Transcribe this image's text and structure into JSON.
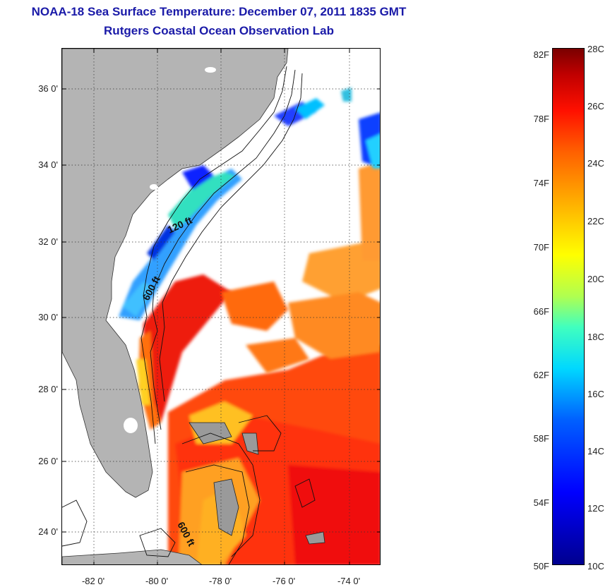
{
  "title": {
    "line1": "NOAA-18 Sea Surface Temperature:  December 07, 2011 1835 GMT",
    "line2": "Rutgers Coastal Ocean Observation Lab"
  },
  "map": {
    "lat_ticks": [
      "36 0'",
      "34 0'",
      "32 0'",
      "30 0'",
      "28 0'",
      "26 0'",
      "24 0'"
    ],
    "lon_ticks": [
      "-82 0'",
      "-80 0'",
      "-78 0'",
      "-76 0'",
      "-74 0'"
    ],
    "contour_labels": [
      "120 ft",
      "600 ft",
      "600 ft"
    ],
    "land_color": "#b4b4b4",
    "cloud_color": "#ffffff"
  },
  "colorbar": {
    "fahrenheit_labels": [
      "82F",
      "78F",
      "74F",
      "70F",
      "66F",
      "62F",
      "58F",
      "54F",
      "50F"
    ],
    "celsius_labels": [
      "28C",
      "26C",
      "24C",
      "22C",
      "20C",
      "18C",
      "16C",
      "14C",
      "12C",
      "10C"
    ],
    "min_c": 10,
    "max_c": 28
  }
}
